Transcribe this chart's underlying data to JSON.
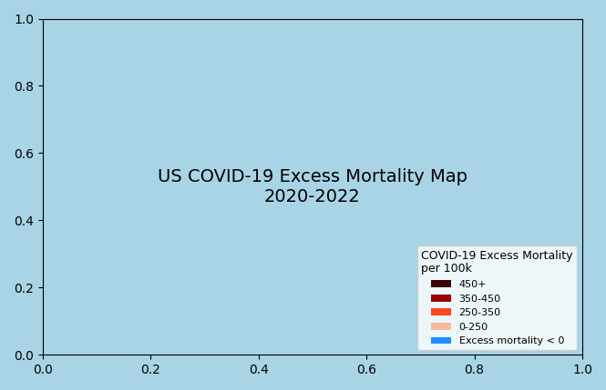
{
  "title": "COVID-19 Excess Mortality\nper 100k",
  "legend_labels": [
    "450+",
    "350-450",
    "250-350",
    "0-250",
    "Excess mortality < 0"
  ],
  "legend_colors": [
    "#3d0000",
    "#990000",
    "#ff4422",
    "#f4b8a0",
    "#1e90ff"
  ],
  "color_450plus": "#3d0000",
  "color_350_450": "#990000",
  "color_250_350": "#ff4422",
  "color_0_250": "#f4b8a0",
  "color_negative": "#1e90ff",
  "background_ocean": "#a8d4e6",
  "background_land": "#f5f0eb",
  "legend_box_color": "white",
  "legend_title_fontsize": 9,
  "legend_label_fontsize": 8,
  "figsize": [
    6.65,
    4.29
  ],
  "dpi": 100
}
